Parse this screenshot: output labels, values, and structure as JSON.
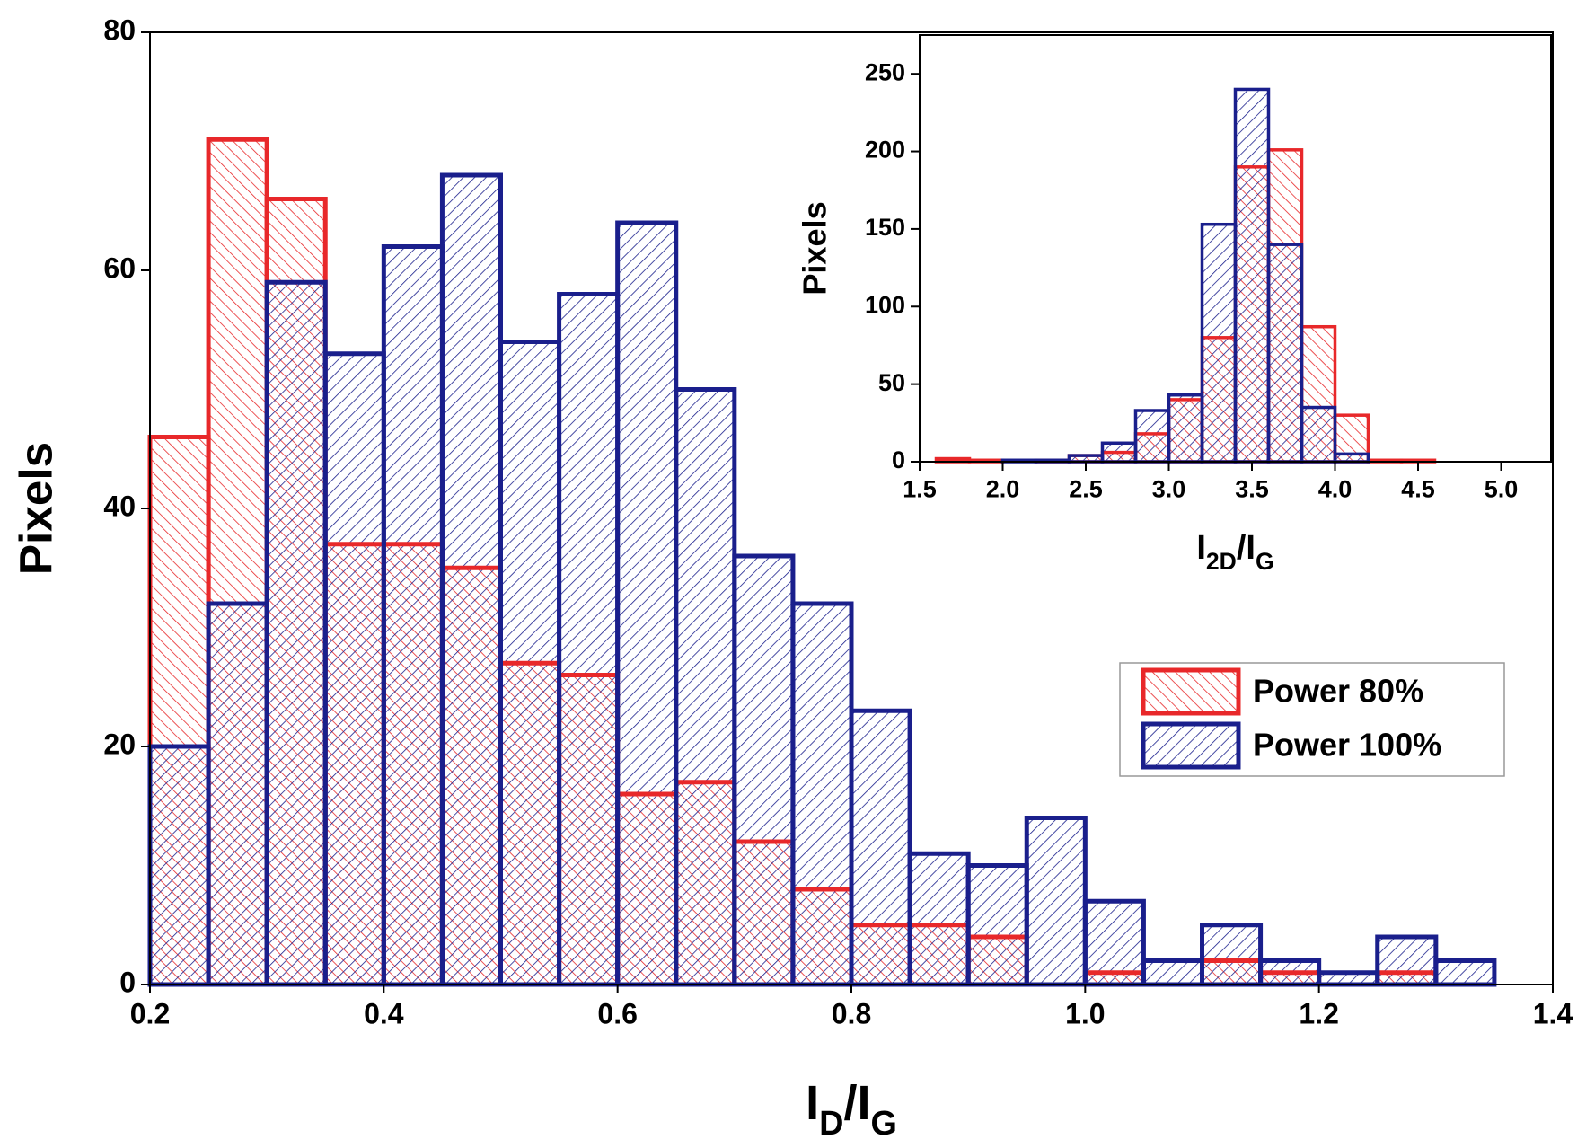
{
  "chart_data": [
    {
      "type": "histogram",
      "xlabel": [
        "I",
        "D",
        "/I",
        "G"
      ],
      "ylabel": "Pixels",
      "bins": [
        0.2,
        0.25,
        0.3,
        0.35,
        0.4,
        0.45,
        0.5,
        0.55,
        0.6,
        0.65,
        0.7,
        0.75,
        0.8,
        0.85,
        0.9,
        0.95,
        1.0,
        1.05,
        1.1,
        1.15,
        1.2,
        1.25,
        1.3,
        1.35
      ],
      "series": [
        {
          "name": "Power 80%",
          "color": "#e8282a",
          "values": [
            46,
            71,
            66,
            37,
            37,
            35,
            27,
            26,
            16,
            17,
            12,
            8,
            5,
            5,
            4,
            0,
            1,
            0,
            2,
            1,
            0,
            1,
            0
          ]
        },
        {
          "name": "Power 100%",
          "color": "#1a1f8c",
          "values": [
            20,
            32,
            59,
            53,
            62,
            68,
            54,
            58,
            64,
            50,
            36,
            32,
            23,
            11,
            10,
            14,
            7,
            2,
            5,
            2,
            1,
            4,
            2
          ]
        }
      ],
      "xlim": [
        0.2,
        1.4
      ],
      "ylim": [
        0,
        80
      ],
      "xticks": [
        0.2,
        0.4,
        0.6,
        0.8,
        {
          "value": 1.0,
          "label": "1.0"
        },
        1.2,
        1.4
      ],
      "yticks": [
        0,
        20,
        40,
        60,
        80
      ],
      "legend": "center right"
    },
    {
      "type": "histogram",
      "xlabel": [
        "I",
        "2D",
        "/I",
        "G"
      ],
      "ylabel": "Pixels",
      "bins": [
        1.6,
        1.8,
        2.0,
        2.2,
        2.4,
        2.6,
        2.8,
        3.0,
        3.2,
        3.4,
        3.6,
        3.8,
        4.0,
        4.2,
        4.4,
        4.6
      ],
      "series": [
        {
          "color": "#e8282a",
          "values": [
            2,
            1,
            0,
            1,
            4,
            6,
            18,
            40,
            80,
            190,
            201,
            87,
            30,
            1,
            1
          ]
        },
        {
          "color": "#1a1f8c",
          "values": [
            0,
            0,
            1,
            1,
            4,
            12,
            33,
            43,
            153,
            240,
            140,
            35,
            5,
            0,
            0
          ]
        }
      ],
      "xlim": [
        1.5,
        5.3
      ],
      "ylim": [
        0,
        275
      ],
      "xticks": [
        1.5,
        {
          "value": 2.0,
          "label": "2.0"
        },
        2.5,
        {
          "value": 3.0,
          "label": "3.0"
        },
        3.5,
        {
          "value": 4.0,
          "label": "4.0"
        },
        4.5,
        {
          "value": 5.0,
          "label": "5.0"
        }
      ],
      "yticks": [
        0,
        50,
        100,
        150,
        200,
        250
      ]
    }
  ]
}
